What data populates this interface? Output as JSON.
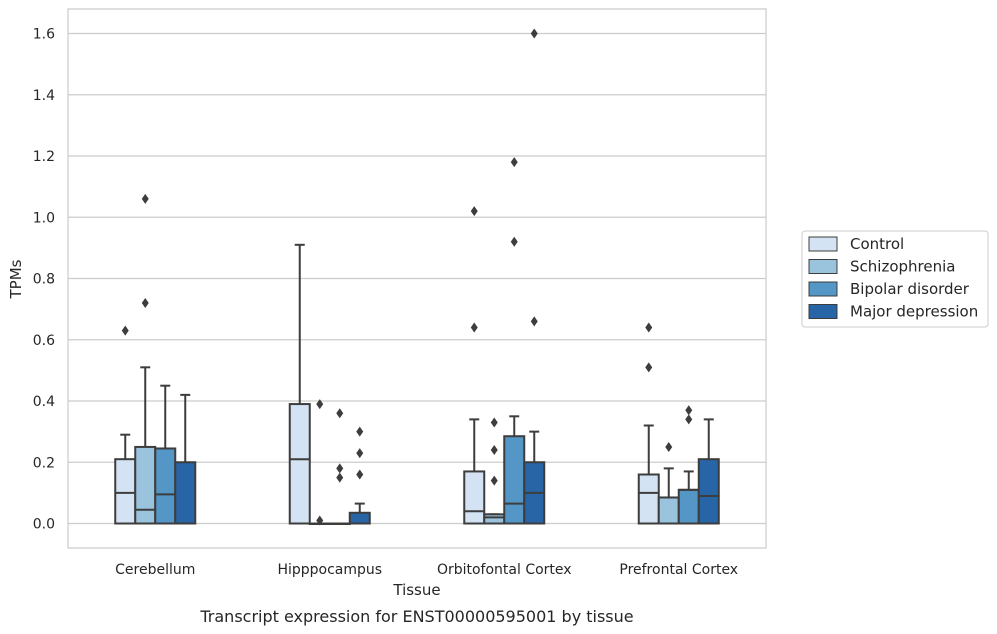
{
  "chart_data": {
    "type": "box",
    "caption": "Transcript expression for ENST00000595001 by tissue",
    "xlabel": "Tissue",
    "ylabel": "TPMs",
    "ylim": [
      -0.08,
      1.68
    ],
    "yticks": [
      0.0,
      0.2,
      0.4,
      0.6,
      0.8,
      1.0,
      1.2,
      1.4,
      1.6
    ],
    "grid": "horizontal",
    "legend_position": "right",
    "categories": [
      "Cerebellum",
      "Hipppocampus",
      "Orbitofontal Cortex",
      "Prefrontal Cortex"
    ],
    "series": [
      {
        "name": "Control",
        "color": "#d4e3f3",
        "boxes": [
          {
            "whislo": 0.0,
            "q1": 0.0,
            "med": 0.1,
            "q3": 0.21,
            "whishi": 0.29,
            "fliers": [
              0.63
            ]
          },
          {
            "whislo": 0.0,
            "q1": 0.0,
            "med": 0.21,
            "q3": 0.39,
            "whishi": 0.91,
            "fliers": []
          },
          {
            "whislo": 0.0,
            "q1": 0.0,
            "med": 0.04,
            "q3": 0.17,
            "whishi": 0.34,
            "fliers": [
              0.64,
              1.02
            ]
          },
          {
            "whislo": 0.0,
            "q1": 0.0,
            "med": 0.1,
            "q3": 0.16,
            "whishi": 0.32,
            "fliers": [
              0.51,
              0.64
            ]
          }
        ]
      },
      {
        "name": "Schizophrenia",
        "color": "#9ac3de",
        "boxes": [
          {
            "whislo": 0.0,
            "q1": 0.0,
            "med": 0.045,
            "q3": 0.25,
            "whishi": 0.51,
            "fliers": [
              0.72,
              1.06
            ]
          },
          {
            "whislo": 0.0,
            "q1": 0.0,
            "med": 0.0,
            "q3": 0.0,
            "whishi": 0.0,
            "fliers": [
              0.01,
              0.39
            ]
          },
          {
            "whislo": 0.0,
            "q1": 0.0,
            "med": 0.02,
            "q3": 0.03,
            "whishi": 0.03,
            "fliers": [
              0.14,
              0.24,
              0.33
            ]
          },
          {
            "whislo": 0.0,
            "q1": 0.0,
            "med": 0.085,
            "q3": 0.085,
            "whishi": 0.18,
            "fliers": [
              0.25
            ]
          }
        ]
      },
      {
        "name": "Bipolar disorder",
        "color": "#5496c6",
        "boxes": [
          {
            "whislo": 0.0,
            "q1": 0.0,
            "med": 0.095,
            "q3": 0.245,
            "whishi": 0.45,
            "fliers": []
          },
          {
            "whislo": 0.0,
            "q1": 0.0,
            "med": 0.0,
            "q3": 0.0,
            "whishi": 0.0,
            "fliers": [
              0.15,
              0.18,
              0.36
            ]
          },
          {
            "whislo": 0.0,
            "q1": 0.0,
            "med": 0.065,
            "q3": 0.285,
            "whishi": 0.35,
            "fliers": [
              0.92,
              1.18
            ]
          },
          {
            "whislo": 0.0,
            "q1": 0.0,
            "med": 0.11,
            "q3": 0.11,
            "whishi": 0.17,
            "fliers": [
              0.34,
              0.37
            ]
          }
        ]
      },
      {
        "name": "Major depression",
        "color": "#2765a7",
        "boxes": [
          {
            "whislo": 0.0,
            "q1": 0.0,
            "med": 0.0,
            "q3": 0.2,
            "whishi": 0.42,
            "fliers": []
          },
          {
            "whislo": 0.0,
            "q1": 0.0,
            "med": 0.0,
            "q3": 0.035,
            "whishi": 0.065,
            "fliers": [
              0.16,
              0.23,
              0.3
            ]
          },
          {
            "whislo": 0.0,
            "q1": 0.0,
            "med": 0.1,
            "q3": 0.2,
            "whishi": 0.3,
            "fliers": [
              0.66,
              1.6
            ]
          },
          {
            "whislo": 0.0,
            "q1": 0.0,
            "med": 0.09,
            "q3": 0.21,
            "whishi": 0.34,
            "fliers": []
          }
        ]
      }
    ]
  }
}
